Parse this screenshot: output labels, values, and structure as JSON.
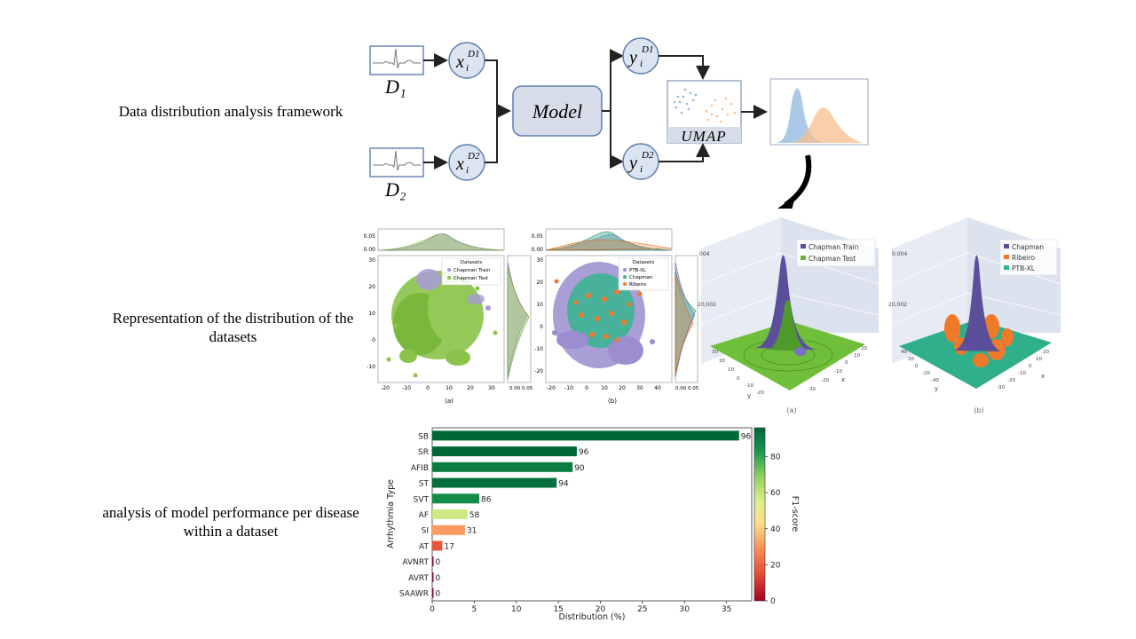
{
  "labels": {
    "framework": "Data distribution analysis framework",
    "representation": "Representation of the distribution of the datasets",
    "performance": "analysis of model performance per disease within a dataset"
  },
  "framework": {
    "d1": "D₁",
    "d2": "D₂",
    "x1": "x",
    "x1_sup": "D1",
    "x1_sub": "i",
    "x2": "x",
    "x2_sup": "D2",
    "x2_sub": "i",
    "y1": "y",
    "y1_sup": "D1",
    "y1_sub": "i",
    "y2": "y",
    "y2_sup": "D2",
    "y2_sub": "i",
    "model": "Model",
    "umap": "UMAP",
    "colors": {
      "node_fill": "#dbe4f1",
      "node_stroke": "#5e7fae",
      "model_fill": "#d6dde9",
      "blue": "#8fb7dd",
      "orange": "#f6bf8e"
    }
  },
  "panels2d": {
    "a": {
      "legend_title": "Datasets",
      "legend": [
        {
          "name": "Chapman Train",
          "color": "#a99ad8"
        },
        {
          "name": "Chapman Test",
          "color": "#8bc34a"
        }
      ],
      "y_ticks": [
        "30",
        "20",
        "10",
        "0",
        "-10"
      ],
      "x_ticks": [
        "-20",
        "-10",
        "0",
        "10",
        "20",
        "30"
      ],
      "top_ticks": [
        "0.05",
        "0.00"
      ],
      "right_ticks": [
        "0.00",
        "0.05"
      ],
      "caption": "(a)"
    },
    "b": {
      "legend_title": "Datasets",
      "legend": [
        {
          "name": "PTB-XL",
          "color": "#9b8dd0"
        },
        {
          "name": "Chapman",
          "color": "#3cb392"
        },
        {
          "name": "Ribeiro",
          "color": "#f07a2a"
        }
      ],
      "y_ticks": [
        "30",
        "20",
        "10",
        "0",
        "-10",
        "-20"
      ],
      "x_ticks": [
        "-20",
        "-10",
        "0",
        "10",
        "20",
        "30",
        "40"
      ],
      "top_ticks": [
        "0.05",
        "0.00"
      ],
      "right_ticks": [
        "0.00",
        "0.05"
      ],
      "caption": "(b)"
    }
  },
  "panels3d": {
    "a": {
      "legend": [
        {
          "name": "Chapman Train",
          "color": "#5b4f9c"
        },
        {
          "name": "Chapman Test",
          "color": "#6bb33c"
        }
      ],
      "z_ticks": [
        "004",
        "20,002"
      ],
      "caption": "(a)",
      "axis_x": "x",
      "axis_y": "y",
      "floor_color": "#6fbf3a"
    },
    "b": {
      "legend": [
        {
          "name": "Chapman",
          "color": "#5b4f9c"
        },
        {
          "name": "Ribeiro",
          "color": "#f07a2a"
        },
        {
          "name": "PTB-XL",
          "color": "#2fb58f"
        }
      ],
      "z_ticks": [
        "0.004",
        "20,002"
      ],
      "caption": "(b)",
      "axis_x": "x",
      "axis_y": "y",
      "floor_color": "#2fb08a"
    }
  },
  "chart_data": {
    "type": "bar",
    "orientation": "horizontal",
    "categories": [
      "SB",
      "SR",
      "AFIB",
      "ST",
      "SVT",
      "AF",
      "SI",
      "AT",
      "AVNRT",
      "AVRT",
      "SAAWR"
    ],
    "values": [
      36.5,
      17.2,
      16.7,
      14.8,
      5.6,
      4.2,
      3.9,
      1.2,
      0.15,
      0.1,
      0.05
    ],
    "f1_scores": [
      96,
      96,
      90,
      94,
      86,
      58,
      31,
      17,
      0,
      0,
      0
    ],
    "data_labels": [
      "96",
      "96",
      "90",
      "94",
      "86",
      "58",
      "31",
      "17",
      "0",
      "0",
      "0"
    ],
    "xlabel": "Distribution (%)",
    "ylabel": "Arrhythmia Type",
    "xlim": [
      0,
      38
    ],
    "x_ticks": [
      "0",
      "5",
      "10",
      "15",
      "20",
      "25",
      "30",
      "35"
    ],
    "colorbar": {
      "label": "F1-score",
      "range": [
        0,
        96
      ],
      "ticks": [
        "0",
        "20",
        "40",
        "60",
        "80"
      ],
      "colormap": "RdYlGn"
    }
  }
}
